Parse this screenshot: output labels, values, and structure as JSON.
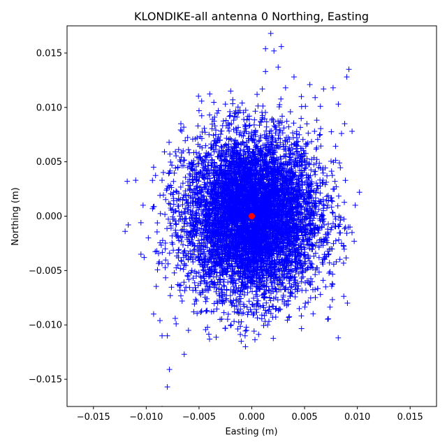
{
  "chart_data": {
    "type": "scatter",
    "title": "KLONDIKE-all antenna 0 Northing, Easting",
    "xlabel": "Easting (m)",
    "ylabel": "Northing (m)",
    "xlim": [
      -0.0175,
      0.0175
    ],
    "ylim": [
      -0.0175,
      0.0175
    ],
    "xticks": [
      -0.015,
      -0.01,
      -0.005,
      0.0,
      0.005,
      0.01,
      0.015
    ],
    "yticks": [
      -0.015,
      -0.01,
      -0.005,
      0.0,
      0.005,
      0.01,
      0.015
    ],
    "xtick_labels": [
      "−0.015",
      "−0.010",
      "−0.005",
      "0.000",
      "0.005",
      "0.010",
      "0.015"
    ],
    "ytick_labels": [
      "−0.015",
      "−0.010",
      "−0.005",
      "0.000",
      "0.005",
      "0.010",
      "0.015"
    ],
    "grid": false,
    "colors": {
      "samples": "#0000ff",
      "reference": "#ff0000"
    },
    "series": [
      {
        "marker": "plus",
        "points": [
          [
            0.0018,
            0.0168
          ],
          [
            0.0028,
            0.0156
          ],
          [
            0.0013,
            0.0154
          ],
          [
            0.0021,
            0.0152
          ],
          [
            0.0092,
            0.0135
          ],
          [
            0.0013,
            0.0133
          ],
          [
            0.0025,
            0.0137
          ],
          [
            0.009,
            0.0128
          ],
          [
            0.004,
            0.0128
          ],
          [
            0.0055,
            0.0121
          ],
          [
            0.0077,
            0.0118
          ],
          [
            0.0068,
            0.0117
          ],
          [
            -0.002,
            0.0115
          ],
          [
            0.0102,
            0.0022
          ],
          [
            0.0098,
            0.001
          ],
          [
            0.0093,
            -0.001
          ],
          [
            0.0097,
            -0.0023
          ],
          [
            0.0085,
            -0.0025
          ],
          [
            0.0083,
            0.0049
          ],
          [
            0.0085,
            0.0076
          ],
          [
            0.0095,
            0.0078
          ],
          [
            0.0088,
            0.0085
          ],
          [
            0.0082,
            0.0103
          ],
          [
            -0.0118,
            0.0032
          ],
          [
            -0.011,
            0.0033
          ],
          [
            -0.0093,
            0.0045
          ],
          [
            -0.0085,
            0.0033
          ],
          [
            -0.0078,
            0.004
          ],
          [
            -0.0117,
            -0.0008
          ],
          [
            -0.012,
            -0.0014
          ],
          [
            -0.0105,
            -0.0006
          ],
          [
            -0.0103,
            0.001
          ],
          [
            -0.0105,
            -0.0035
          ],
          [
            -0.0098,
            -0.002
          ],
          [
            -0.0102,
            -0.0038
          ],
          [
            -0.009,
            -0.0032
          ],
          [
            -0.0082,
            -0.003
          ],
          [
            -0.0093,
            -0.009
          ],
          [
            -0.0087,
            -0.0096
          ],
          [
            -0.0085,
            -0.011
          ],
          [
            -0.008,
            -0.011
          ],
          [
            -0.0078,
            -0.0141
          ],
          [
            -0.008,
            -0.0157
          ],
          [
            -0.0085,
            -0.0177
          ],
          [
            -0.0064,
            -0.0127
          ],
          [
            -0.006,
            -0.0105
          ],
          [
            -0.004,
            -0.0113
          ],
          [
            -0.0025,
            -0.0103
          ],
          [
            -0.001,
            -0.0115
          ],
          [
            -0.0006,
            -0.012
          ],
          [
            -0.0005,
            -0.0105
          ],
          [
            0.0015,
            -0.01
          ],
          [
            0.0035,
            -0.0093
          ],
          [
            0.0045,
            -0.0085
          ],
          [
            0.0065,
            -0.0072
          ],
          [
            0.007,
            -0.0065
          ],
          [
            0.008,
            -0.0042
          ],
          [
            0.0075,
            -0.003
          ],
          [
            0.0072,
            0.001
          ],
          [
            0.0078,
            0.0025
          ],
          [
            -0.005,
            0.0097
          ],
          [
            -0.004,
            0.0093
          ],
          [
            -0.0025,
            0.0103
          ],
          [
            -0.0018,
            0.0107
          ],
          [
            0.0005,
            0.0112
          ],
          [
            0.001,
            0.0117
          ],
          [
            0.0032,
            0.0118
          ],
          [
            0.0047,
            0.011
          ],
          [
            0.006,
            0.0109
          ],
          [
            0.0065,
            0.0101
          ],
          [
            -0.0065,
            0.006
          ],
          [
            -0.007,
            0.0045
          ],
          [
            -0.0075,
            0.002
          ],
          [
            -0.0072,
            -0.0015
          ],
          [
            -0.007,
            -0.0045
          ],
          [
            -0.0068,
            -0.0068
          ],
          [
            -0.0066,
            -0.0078
          ],
          [
            -0.0055,
            -0.0088
          ],
          [
            -0.003,
            -0.0095
          ]
        ]
      },
      {
        "marker": "circle",
        "points": [
          [
            0.0,
            0.0
          ]
        ]
      }
    ],
    "cloud": {
      "center": [
        0.0,
        0.0
      ],
      "std": [
        0.0032,
        0.0037
      ],
      "count": 9000
    }
  }
}
